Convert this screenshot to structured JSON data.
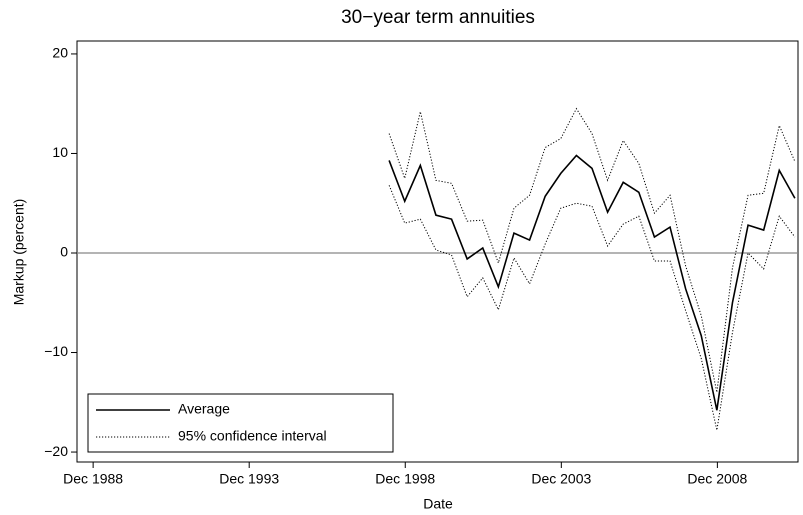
{
  "chart_data": {
    "type": "line",
    "title": "30−year term annuities",
    "xlabel": "Date",
    "ylabel": "Markup (percent)",
    "x": [
      1998.4,
      1998.9,
      1999.4,
      1999.9,
      2000.4,
      2000.9,
      2001.4,
      2001.9,
      2002.4,
      2002.9,
      2003.4,
      2003.9,
      2004.4,
      2004.9,
      2005.4,
      2005.9,
      2006.4,
      2006.9,
      2007.4,
      2007.9,
      2008.4,
      2008.9,
      2009.4,
      2009.9,
      2010.4,
      2010.9,
      2011.4
    ],
    "series": [
      {
        "name": "Average",
        "color": "#000000",
        "style": "solid",
        "values": [
          9.3,
          5.2,
          8.8,
          3.8,
          3.4,
          -0.6,
          0.5,
          -3.4,
          2.0,
          1.3,
          5.7,
          8.0,
          9.8,
          8.5,
          4.1,
          7.1,
          6.1,
          1.6,
          2.6,
          -3.6,
          -8.3,
          -15.8,
          -5.0,
          2.8,
          2.3,
          8.3,
          5.5
        ]
      },
      {
        "name": "95% confidence interval",
        "color": "#000000",
        "style": "dotted",
        "values": [
          12.0,
          7.5,
          14.2,
          7.3,
          7.0,
          3.2,
          3.3,
          -1.0,
          4.5,
          5.8,
          10.6,
          11.5,
          14.5,
          12.0,
          7.3,
          11.3,
          9.0,
          4.0,
          5.8,
          -1.3,
          -6.3,
          -14.0,
          -1.5,
          5.8,
          6.0,
          12.8,
          9.2
        ],
        "lower_values": [
          6.8,
          3.0,
          3.4,
          0.3,
          -0.2,
          -4.4,
          -2.5,
          -5.7,
          -0.5,
          -3.1,
          0.9,
          4.5,
          5.0,
          4.7,
          0.7,
          2.9,
          3.7,
          -0.8,
          -0.8,
          -5.8,
          -10.6,
          -17.8,
          -8.0,
          0.0,
          -1.6,
          3.7,
          1.6
        ]
      }
    ],
    "reference_line": 0,
    "xlim": [
      1988.4,
      2011.5
    ],
    "xticks": [
      {
        "value": 1988.917,
        "label": "Dec 1988"
      },
      {
        "value": 1993.917,
        "label": "Dec 1993"
      },
      {
        "value": 1998.917,
        "label": "Dec 1998"
      },
      {
        "value": 2003.917,
        "label": "Dec 2003"
      },
      {
        "value": 2008.917,
        "label": "Dec 2008"
      }
    ],
    "ylim": [
      -21,
      21.3
    ],
    "yticks": [
      {
        "value": -20,
        "label": "−20"
      },
      {
        "value": -10,
        "label": "−10"
      },
      0,
      10,
      20
    ],
    "legend": "lower left"
  }
}
